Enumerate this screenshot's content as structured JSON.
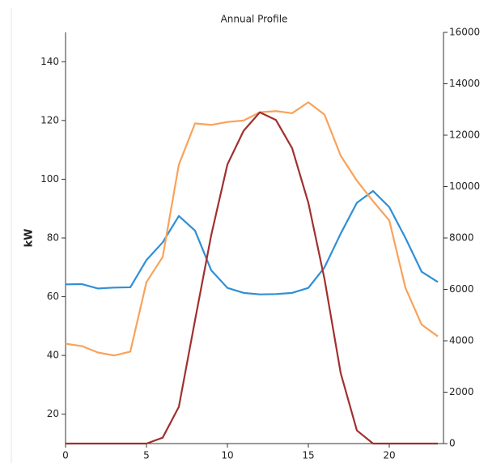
{
  "chart_data": {
    "type": "line",
    "title": "Annual Profile",
    "y_label": "kW",
    "x": [
      0,
      1,
      2,
      3,
      4,
      5,
      6,
      7,
      8,
      9,
      10,
      11,
      12,
      13,
      14,
      15,
      16,
      17,
      18,
      19,
      20,
      21,
      22,
      23
    ],
    "xlim": [
      0,
      23.35
    ],
    "xticks": [
      0,
      5,
      10,
      15,
      20
    ],
    "ylim": [
      10,
      150
    ],
    "yticks": [
      20,
      40,
      60,
      80,
      100,
      120,
      140
    ],
    "y2lim": [
      0,
      16000
    ],
    "y2ticks": [
      0,
      2000,
      4000,
      6000,
      8000,
      10000,
      12000,
      14000,
      16000
    ],
    "series": [
      {
        "color": "#2f8fd6",
        "values": [
          64.2,
          64.3,
          62.8,
          63.1,
          63.2,
          72.5,
          78.5,
          87.5,
          82.5,
          69,
          63,
          61.3,
          60.8,
          60.9,
          61.3,
          63,
          70,
          81.5,
          92,
          96,
          90.5,
          80,
          68.5,
          65
        ]
      },
      {
        "color": "#f9a25a",
        "values": [
          44,
          43.2,
          41,
          40,
          41.3,
          65,
          73.5,
          105,
          119,
          118.5,
          119.5,
          120,
          122.8,
          123.2,
          122.5,
          126.2,
          122,
          108,
          99.5,
          92.5,
          86,
          63,
          50.5,
          46.5
        ]
      },
      {
        "color": "#a0302f",
        "axis": "y2",
        "values": [
          0,
          0,
          0,
          0,
          0,
          0,
          230,
          1430,
          4800,
          8110,
          10860,
          12170,
          12890,
          12590,
          11490,
          9370,
          6400,
          2740,
          510,
          0,
          0,
          0,
          0,
          0
        ]
      }
    ]
  }
}
